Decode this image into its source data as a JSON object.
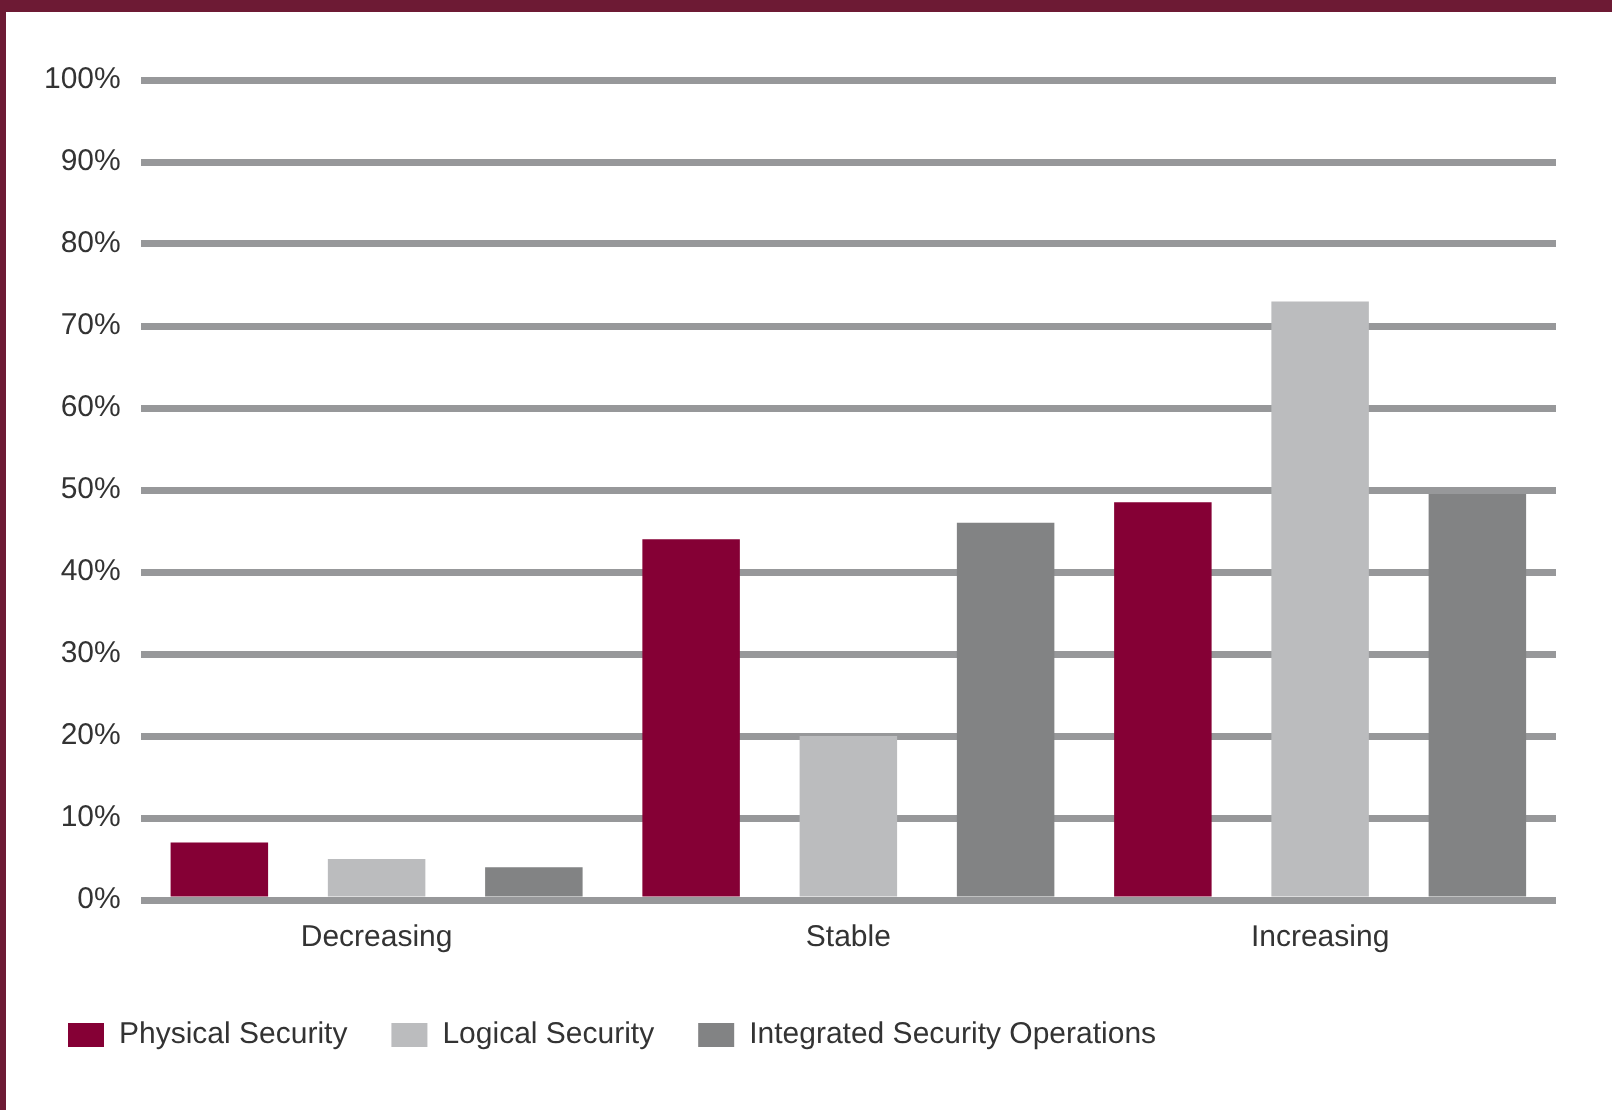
{
  "chart_data": {
    "type": "bar",
    "categories": [
      "Decreasing",
      "Stable",
      "Increasing"
    ],
    "series": [
      {
        "name": "Physical Security",
        "color": "#850035",
        "values": [
          7,
          44,
          48.5
        ]
      },
      {
        "name": "Logical Security",
        "color": "#bbbcbe",
        "values": [
          5,
          20,
          73
        ]
      },
      {
        "name": "Integrated Security Operations",
        "color": "#828384",
        "values": [
          4,
          46,
          49.5
        ]
      }
    ],
    "ylim": [
      0,
      100
    ],
    "yticks": [
      {
        "value": 0,
        "label": "0%"
      },
      {
        "value": 10,
        "label": "10%"
      },
      {
        "value": 20,
        "label": "20%"
      },
      {
        "value": 30,
        "label": "30%"
      },
      {
        "value": 40,
        "label": "40%"
      },
      {
        "value": 50,
        "label": "50%"
      },
      {
        "value": 60,
        "label": "60%"
      },
      {
        "value": 70,
        "label": "70%"
      },
      {
        "value": 80,
        "label": "80%"
      },
      {
        "value": 90,
        "label": "90%"
      },
      {
        "value": 100,
        "label": "100%"
      }
    ],
    "grid": "y",
    "legend": "bottom left"
  }
}
